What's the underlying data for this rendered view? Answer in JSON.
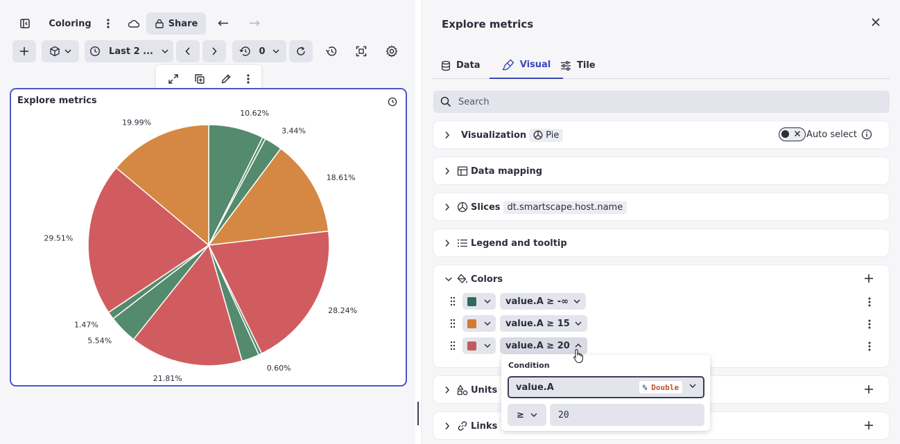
{
  "toolbar": {
    "dashboard_name": "Coloring",
    "share_label": "Share",
    "timeframe_label": "Last 2 ...",
    "refresh_count": "0"
  },
  "tile": {
    "title": "Explore metrics"
  },
  "chart_data": {
    "type": "pie",
    "slices": [
      {
        "label": "10.62%",
        "value": 10.62,
        "color": "#548a6d"
      },
      {
        "label": "",
        "value": 0.6,
        "color": "#548a6d"
      },
      {
        "label": "3.44%",
        "value": 3.44,
        "color": "#548a6d"
      },
      {
        "label": "18.61%",
        "value": 18.61,
        "color": "#d58843"
      },
      {
        "label": "28.24%",
        "value": 28.24,
        "color": "#d15c60"
      },
      {
        "label": "0.60%",
        "value": 0.6,
        "color": "#548a6d"
      },
      {
        "label": "",
        "value": 3.4,
        "color": "#548a6d"
      },
      {
        "label": "21.81%",
        "value": 21.81,
        "color": "#d15c60"
      },
      {
        "label": "5.54%",
        "value": 5.54,
        "color": "#548a6d"
      },
      {
        "label": "1.47%",
        "value": 1.47,
        "color": "#548a6d"
      },
      {
        "label": "29.51%",
        "value": 29.51,
        "color": "#d15c60"
      },
      {
        "label": "19.99%",
        "value": 19.99,
        "color": "#d58843"
      }
    ]
  },
  "panel": {
    "title": "Explore metrics",
    "tabs": [
      {
        "label": "Data",
        "icon": "database-icon"
      },
      {
        "label": "Visual",
        "icon": "brush-icon"
      },
      {
        "label": "Tile",
        "icon": "sliders-icon"
      }
    ],
    "search_placeholder": "Search",
    "visualization": {
      "label": "Visualization",
      "value": "Pie",
      "auto_select_label": "Auto select"
    },
    "data_mapping": {
      "label": "Data mapping"
    },
    "slices": {
      "label": "Slices",
      "value": "dt.smartscape.host.name"
    },
    "legend": {
      "label": "Legend and tooltip"
    },
    "colors": {
      "label": "Colors",
      "rules": [
        {
          "color": "#2e6b5a",
          "condition": "value.A ≥ -∞"
        },
        {
          "color": "#d07a35",
          "condition": "value.A ≥ 15"
        },
        {
          "color": "#c45a5e",
          "condition": "value.A ≥ 20"
        }
      ]
    },
    "units": {
      "label": "Units"
    },
    "links": {
      "label": "Links"
    }
  },
  "condition_popover": {
    "label": "Condition",
    "field": "value.A",
    "type_prefix": "%",
    "type": "Double",
    "operator": "≥",
    "value": "20"
  }
}
